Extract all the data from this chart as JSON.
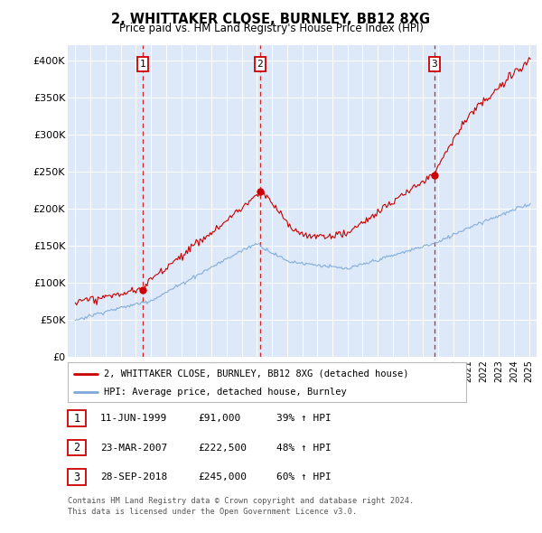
{
  "title": "2, WHITTAKER CLOSE, BURNLEY, BB12 8XG",
  "subtitle": "Price paid vs. HM Land Registry's House Price Index (HPI)",
  "footer1": "Contains HM Land Registry data © Crown copyright and database right 2024.",
  "footer2": "This data is licensed under the Open Government Licence v3.0.",
  "legend_red": "2, WHITTAKER CLOSE, BURNLEY, BB12 8XG (detached house)",
  "legend_blue": "HPI: Average price, detached house, Burnley",
  "transactions": [
    {
      "num": 1,
      "date": "11-JUN-1999",
      "price": 91000,
      "pct": "39%",
      "year_x": 1999.45
    },
    {
      "num": 2,
      "date": "23-MAR-2007",
      "price": 222500,
      "pct": "48%",
      "year_x": 2007.22
    },
    {
      "num": 3,
      "date": "28-SEP-2018",
      "price": 245000,
      "pct": "60%",
      "year_x": 2018.74
    }
  ],
  "background_color": "#dde8f8",
  "grid_color": "#ffffff",
  "red_line_color": "#cc0000",
  "blue_line_color": "#7aa8d8",
  "dashed_color": "#cc0000",
  "ylim": [
    0,
    420000
  ],
  "yticks": [
    0,
    50000,
    100000,
    150000,
    200000,
    250000,
    300000,
    350000,
    400000
  ],
  "ytick_labels": [
    "£0",
    "£50K",
    "£100K",
    "£150K",
    "£200K",
    "£250K",
    "£300K",
    "£350K",
    "£400K"
  ],
  "xmin": 1994.5,
  "xmax": 2025.5
}
